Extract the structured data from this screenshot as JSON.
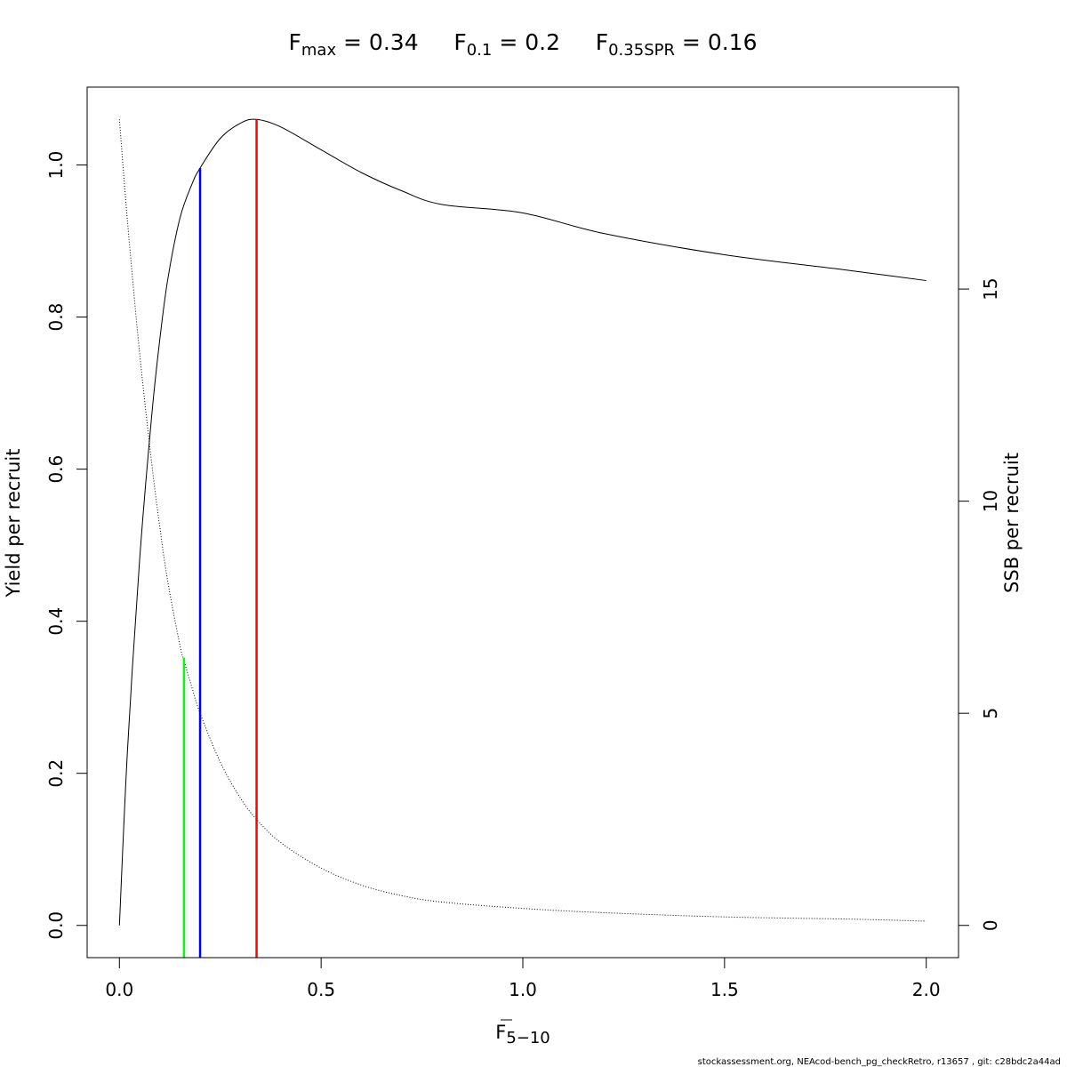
{
  "chart_data": {
    "type": "line",
    "title_parts": [
      {
        "base": "F",
        "sub": "max",
        "rest": " = 0.34"
      },
      {
        "base": "F",
        "sub": "0.1",
        "rest": " = 0.2"
      },
      {
        "base": "F",
        "sub": "0.35SPR",
        "rest": " = 0.16"
      }
    ],
    "xlabel": {
      "base": "F",
      "sub": "5−10",
      "overline": true
    },
    "ylabel": "Yield per recruit",
    "y2label": "SSB per recruit",
    "xlim": [
      -0.08,
      2.08
    ],
    "ylim": [
      -0.0424,
      1.1024
    ],
    "y2lim": [
      -0.76,
      19.76
    ],
    "x_ticks": [
      0.0,
      0.5,
      1.0,
      1.5,
      2.0
    ],
    "x_tick_labels": [
      "0.0",
      "0.5",
      "1.0",
      "1.5",
      "2.0"
    ],
    "y_ticks": [
      0.0,
      0.2,
      0.4,
      0.6,
      0.8,
      1.0
    ],
    "y_tick_labels": [
      "0.0",
      "0.2",
      "0.4",
      "0.6",
      "0.8",
      "1.0"
    ],
    "y2_ticks": [
      0,
      5,
      10,
      15
    ],
    "y2_tick_labels": [
      "0",
      "5",
      "10",
      "15"
    ],
    "grid": false,
    "series": [
      {
        "axis": "left",
        "style": "solid",
        "color": "#000000",
        "x": [
          0,
          0.02,
          0.05,
          0.08,
          0.1,
          0.12,
          0.15,
          0.18,
          0.2,
          0.25,
          0.3,
          0.34,
          0.4,
          0.5,
          0.6,
          0.7,
          0.8,
          1.0,
          1.2,
          1.5,
          1.8,
          2.0
        ],
        "values": [
          0,
          0.23,
          0.48,
          0.67,
          0.77,
          0.85,
          0.93,
          0.975,
          0.996,
          1.035,
          1.055,
          1.06,
          1.05,
          1.02,
          0.99,
          0.966,
          0.948,
          0.937,
          0.91,
          0.882,
          0.862,
          0.848
        ]
      },
      {
        "axis": "right",
        "style": "dotted",
        "color": "#000000",
        "x": [
          0,
          0.02,
          0.05,
          0.08,
          0.1,
          0.12,
          0.15,
          0.16,
          0.18,
          0.2,
          0.25,
          0.3,
          0.34,
          0.4,
          0.5,
          0.6,
          0.7,
          0.8,
          1.0,
          1.2,
          1.5,
          1.8,
          2.0
        ],
        "values": [
          19.0,
          16.6,
          13.5,
          10.9,
          9.4,
          8.1,
          6.6,
          6.25,
          5.6,
          5.0,
          3.85,
          3.0,
          2.5,
          1.95,
          1.35,
          0.95,
          0.7,
          0.55,
          0.4,
          0.3,
          0.2,
          0.15,
          0.1
        ]
      }
    ],
    "reference_lines": [
      {
        "name": "F0.35SPR",
        "x": 0.16,
        "y_top": 0.352,
        "color": "#00ff00"
      },
      {
        "name": "F0.1",
        "x": 0.2,
        "y_top": 0.996,
        "color": "#0000ff"
      },
      {
        "name": "Fmax",
        "x": 0.34,
        "y_top": 1.06,
        "color": "#ff0000"
      }
    ]
  },
  "footer": "stockassessment.org, NEAcod-bench_pg_checkRetro, r13657 , git: c28bdc2a44ad"
}
